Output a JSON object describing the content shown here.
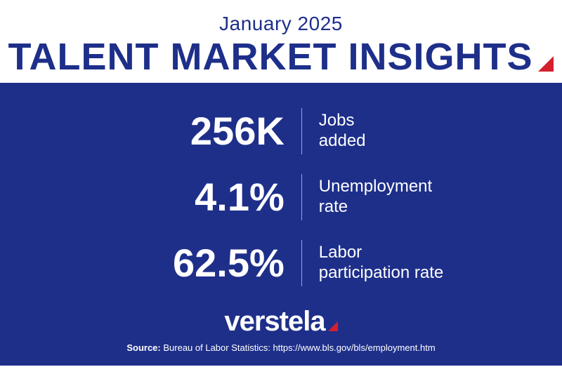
{
  "colors": {
    "brand_blue": "#1e2f8a",
    "panel_blue": "#1e2f8a",
    "accent_red": "#d4202c",
    "white": "#ffffff",
    "divider": "#9ba4d0"
  },
  "header": {
    "date": "January 2025",
    "title": "TALENT MARKET INSIGHTS",
    "date_fontsize": 28,
    "title_fontsize": 54
  },
  "stats": [
    {
      "value": "256K",
      "label": "Jobs\nadded"
    },
    {
      "value": "4.1%",
      "label": "Unemployment\nrate"
    },
    {
      "value": "62.5%",
      "label": "Labor\nparticipation rate"
    }
  ],
  "stat_value_fontsize": 56,
  "stat_label_fontsize": 24,
  "logo": {
    "text": "verstela",
    "fontsize": 40
  },
  "source": {
    "label": "Source:",
    "text": "Bureau of Labor Statistics: https://www.bls.gov/bls/employment.htm"
  }
}
